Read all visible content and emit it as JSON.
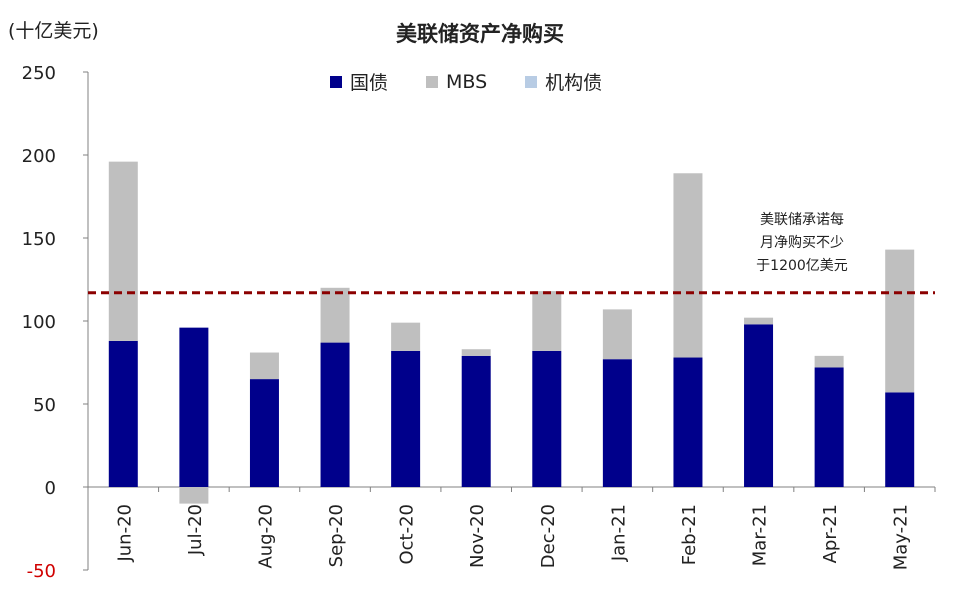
{
  "chart_data": {
    "type": "bar",
    "stacked": true,
    "title": "美联储资产净购买",
    "unit_label": "(十亿美元)",
    "categories": [
      "Jun-20",
      "Jul-20",
      "Aug-20",
      "Sep-20",
      "Oct-20",
      "Nov-20",
      "Dec-20",
      "Jan-21",
      "Feb-21",
      "Mar-21",
      "Apr-21",
      "May-21"
    ],
    "series": [
      {
        "name": "国债",
        "color": "#00008B",
        "values": [
          88,
          96,
          65,
          87,
          82,
          79,
          82,
          77,
          78,
          98,
          72,
          57
        ]
      },
      {
        "name": "MBS",
        "color": "#BFBFBF",
        "values": [
          108,
          -10,
          16,
          33,
          17,
          4,
          36,
          30,
          111,
          4,
          7,
          86
        ]
      },
      {
        "name": "机构债",
        "color": "#B8CCE4",
        "values": [
          0,
          0,
          0,
          0,
          0,
          0,
          0,
          0,
          0,
          0,
          0,
          0
        ]
      }
    ],
    "ylim": [
      -50,
      250
    ],
    "yticks": [
      "250",
      "200",
      "150",
      "100",
      "50",
      "0",
      "-50"
    ],
    "reference_line": {
      "value": 117,
      "color": "#8B0000",
      "style": "dashed"
    },
    "annotation": [
      "美联储承诺每",
      "月净购买不少",
      "于1200亿美元"
    ],
    "legend_position": "top"
  }
}
